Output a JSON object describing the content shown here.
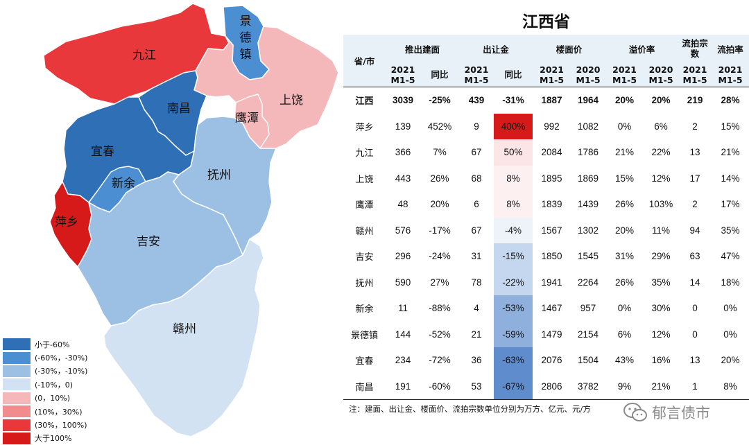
{
  "colors": {
    "lt_neg60": "#2f6fb5",
    "neg60_neg30": "#4b8ed1",
    "neg30_neg10": "#9cc0e4",
    "neg10_0": "#d2e2f2",
    "p0_10": "#f4b8ba",
    "p10_30": "#f08c8e",
    "p30_100": "#e8383c",
    "gt100": "#d61a1a",
    "header_bg": "#e8f1f8"
  },
  "map": {
    "regions": [
      {
        "key": "jiujiang",
        "label": "九江",
        "bucket": "p30_100"
      },
      {
        "key": "jingdezhen",
        "label": "景\n德\n镇",
        "bucket": "neg60_neg30"
      },
      {
        "key": "shangrao",
        "label": "上饶",
        "bucket": "p0_10"
      },
      {
        "key": "yingtan",
        "label": "鹰潭",
        "bucket": "p0_10"
      },
      {
        "key": "nanchang",
        "label": "南昌",
        "bucket": "lt_neg60"
      },
      {
        "key": "yichun",
        "label": "宜春",
        "bucket": "lt_neg60"
      },
      {
        "key": "xinyu",
        "label": "新余",
        "bucket": "neg60_neg30"
      },
      {
        "key": "fuzhou",
        "label": "抚州",
        "bucket": "neg30_neg10"
      },
      {
        "key": "pingxiang",
        "label": "萍乡",
        "bucket": "gt100"
      },
      {
        "key": "jian",
        "label": "吉安",
        "bucket": "neg30_neg10"
      },
      {
        "key": "ganzhou",
        "label": "赣州",
        "bucket": "neg10_0"
      }
    ]
  },
  "legend": [
    {
      "label": "小于-60%",
      "bucket": "lt_neg60"
    },
    {
      "label": "(-60%，-30%)",
      "bucket": "neg60_neg30"
    },
    {
      "label": "(-30%，-10%)",
      "bucket": "neg30_neg10"
    },
    {
      "label": "(-10%，0)",
      "bucket": "neg10_0"
    },
    {
      "label": "(0，10%)",
      "bucket": "p0_10"
    },
    {
      "label": "(10%，30%)",
      "bucket": "p10_30"
    },
    {
      "label": "(30%，100%)",
      "bucket": "p30_100"
    },
    {
      "label": "大于100%",
      "bucket": "gt100"
    }
  ],
  "chart_data": {
    "type": "table",
    "title": "江西省",
    "header_row1": [
      "省/市",
      "推出建面",
      "出让金",
      "楼面价",
      "溢价率",
      "流拍宗数",
      "流拍率"
    ],
    "header_row2": [
      "2021\nM1-5",
      "同比",
      "2021\nM1-5",
      "同比",
      "2021\nM1-5",
      "2020\nM1-5",
      "2021\nM1-5",
      "2020\nM1-5",
      "2021\nM1-5",
      "2021\nM1-5"
    ],
    "rows": [
      {
        "name": "江西",
        "vals": [
          "3039",
          "-25%",
          "439",
          "-31%",
          "1887",
          "1964",
          "20%",
          "20%",
          "219",
          "28%"
        ],
        "yoy": null
      },
      {
        "name": "萍乡",
        "vals": [
          "139",
          "452%",
          "9",
          "400%",
          "992",
          "1082",
          "0%",
          "6%",
          "2",
          "15%"
        ],
        "yoy": 4.0
      },
      {
        "name": "九江",
        "vals": [
          "366",
          "7%",
          "67",
          "50%",
          "2084",
          "1786",
          "21%",
          "22%",
          "13",
          "21%"
        ],
        "yoy": 0.5
      },
      {
        "name": "上饶",
        "vals": [
          "443",
          "26%",
          "68",
          "8%",
          "1895",
          "1869",
          "15%",
          "12%",
          "17",
          "14%"
        ],
        "yoy": 0.08
      },
      {
        "name": "鹰潭",
        "vals": [
          "48",
          "20%",
          "6",
          "8%",
          "1839",
          "1439",
          "26%",
          "103%",
          "2",
          "17%"
        ],
        "yoy": 0.08
      },
      {
        "name": "赣州",
        "vals": [
          "576",
          "-17%",
          "67",
          "-4%",
          "1567",
          "1302",
          "20%",
          "11%",
          "94",
          "35%"
        ],
        "yoy": -0.04
      },
      {
        "name": "吉安",
        "vals": [
          "296",
          "-24%",
          "31",
          "-15%",
          "1850",
          "1545",
          "31%",
          "29%",
          "63",
          "47%"
        ],
        "yoy": -0.15
      },
      {
        "name": "抚州",
        "vals": [
          "590",
          "27%",
          "78",
          "-22%",
          "1941",
          "2264",
          "26%",
          "35%",
          "14",
          "18%"
        ],
        "yoy": -0.22
      },
      {
        "name": "新余",
        "vals": [
          "11",
          "-88%",
          "4",
          "-53%",
          "1467",
          "957",
          "0%",
          "30%",
          "0",
          "0%"
        ],
        "yoy": -0.53
      },
      {
        "name": "景德镇",
        "vals": [
          "144",
          "-52%",
          "21",
          "-59%",
          "1479",
          "2154",
          "6%",
          "12%",
          "0",
          "0%"
        ],
        "yoy": -0.59
      },
      {
        "name": "宜春",
        "vals": [
          "234",
          "-72%",
          "36",
          "-63%",
          "2076",
          "1504",
          "43%",
          "16%",
          "13",
          "20%"
        ],
        "yoy": -0.63
      },
      {
        "name": "南昌",
        "vals": [
          "191",
          "-60%",
          "53",
          "-67%",
          "2806",
          "3782",
          "9%",
          "21%",
          "1",
          "8%"
        ],
        "yoy": -0.67
      }
    ],
    "note": "注：建面、出让金、楼面价、流拍宗数单位分别为万方、亿元、元/方"
  },
  "watermark": {
    "text": "郁言债市",
    "icon": "wechat-icon"
  }
}
